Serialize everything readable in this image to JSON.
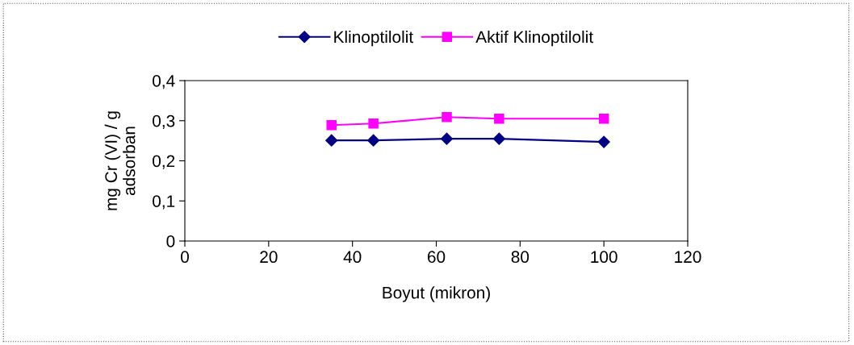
{
  "chart_data": {
    "type": "line",
    "xlabel": "Boyut (mikron)",
    "ylabel": "mg Cr (VI) / g\nadsorban",
    "x": [
      35,
      45,
      62.5,
      75,
      100
    ],
    "series": [
      {
        "name": "Klinoptilolit",
        "color": "#000080",
        "values": [
          0.251,
          0.251,
          0.255,
          0.255,
          0.247
        ],
        "marker": "diamond"
      },
      {
        "name": "Aktif Klinoptilolit",
        "color": "#ff00ff",
        "values": [
          0.289,
          0.293,
          0.309,
          0.305,
          0.305
        ],
        "marker": "square"
      }
    ],
    "xlim": [
      0,
      120
    ],
    "xticks": [
      0,
      20,
      40,
      60,
      80,
      100,
      120
    ],
    "ylim": [
      0,
      0.4
    ],
    "yticks": [
      {
        "value": 0,
        "label": "0"
      },
      {
        "value": 0.1,
        "label": "0,1"
      },
      {
        "value": 0.2,
        "label": "0,2"
      },
      {
        "value": 0.3,
        "label": "0,3"
      },
      {
        "value": 0.4,
        "label": "0,4"
      }
    ],
    "grid": false,
    "legend": "top",
    "line_style": "solid"
  }
}
